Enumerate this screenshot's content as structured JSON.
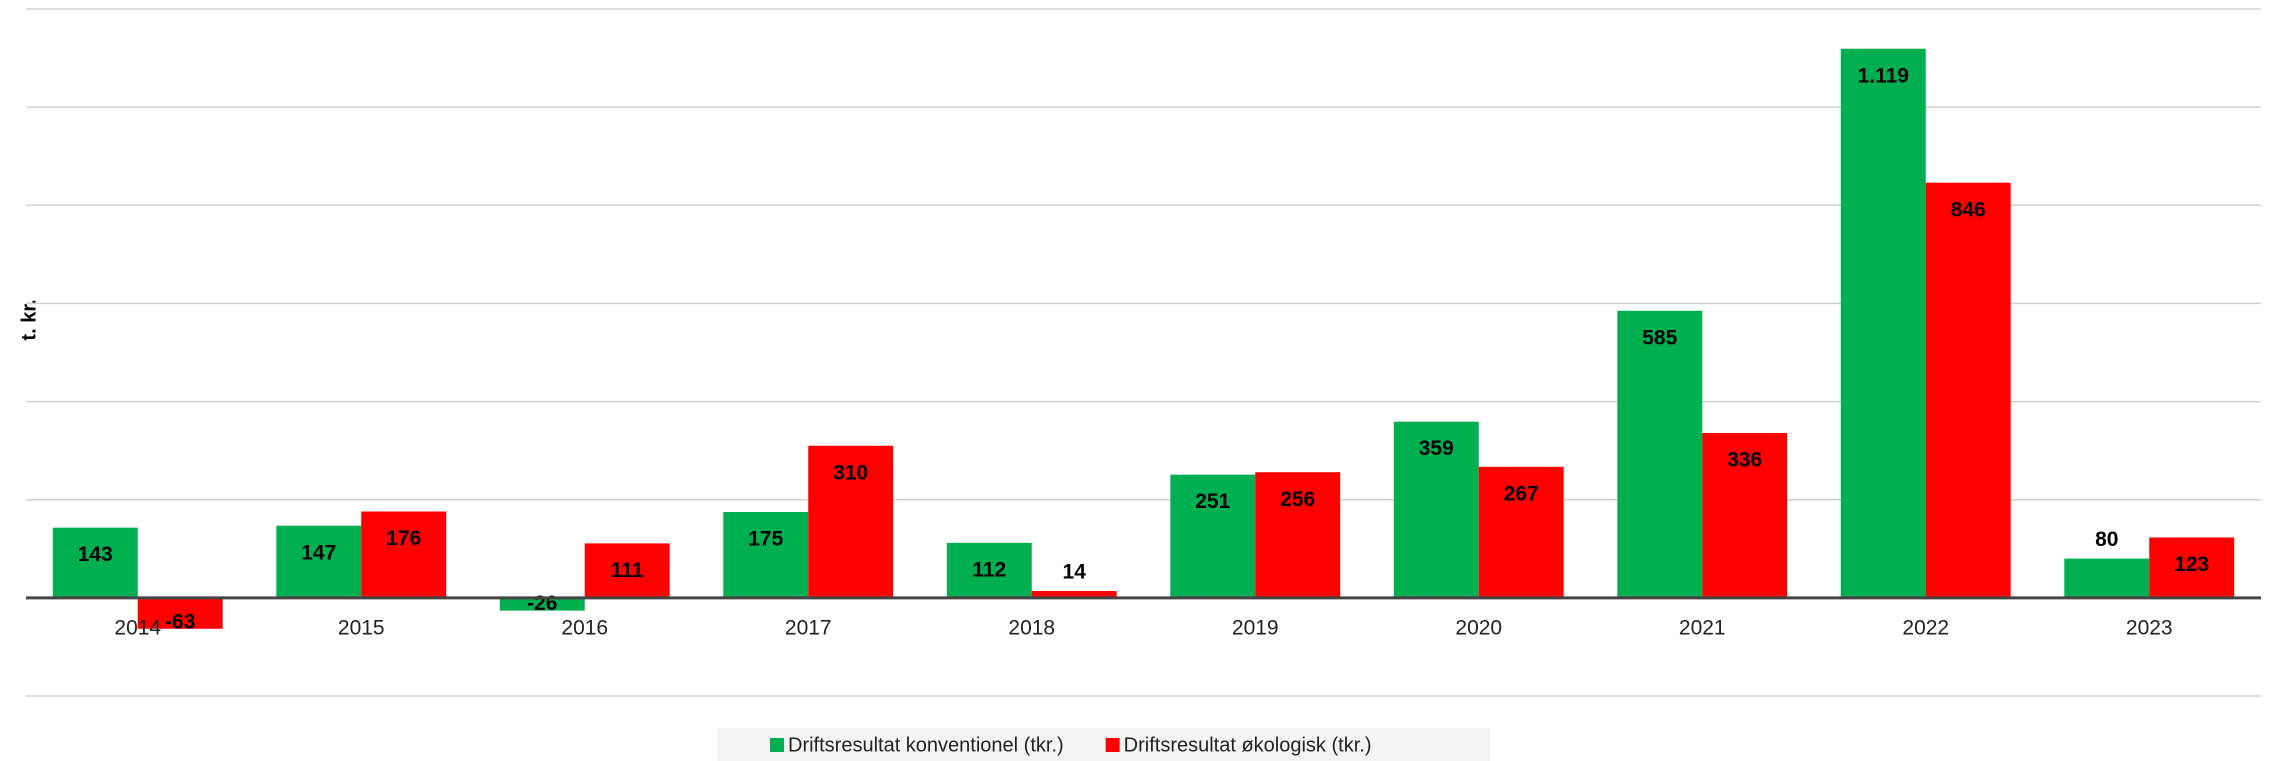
{
  "chart_data": {
    "type": "bar",
    "y_label": "t. kr.",
    "categories": [
      "2014",
      "2015",
      "2016",
      "2017",
      "2018",
      "2019",
      "2020",
      "2021",
      "2022",
      "2023"
    ],
    "series": [
      {
        "name": "Driftsresultat konventionel (tkr.)",
        "color": "#00b050",
        "values": [
          143,
          147,
          -26,
          175,
          112,
          251,
          359,
          585,
          1119,
          80
        ],
        "value_labels": [
          "143",
          "147",
          "-26",
          "175",
          "112",
          "251",
          "359",
          "585",
          "1.119",
          "80"
        ]
      },
      {
        "name": "Driftsresultat økologisk (tkr.)",
        "color": "#ff0000",
        "values": [
          -63,
          176,
          111,
          310,
          14,
          256,
          267,
          336,
          846,
          123
        ]
      }
    ],
    "ylim": [
      -200,
      1200
    ],
    "yticks": [
      -200,
      0,
      200,
      400,
      600,
      800,
      1000,
      1200
    ],
    "grid": true,
    "legend": "bottom"
  }
}
